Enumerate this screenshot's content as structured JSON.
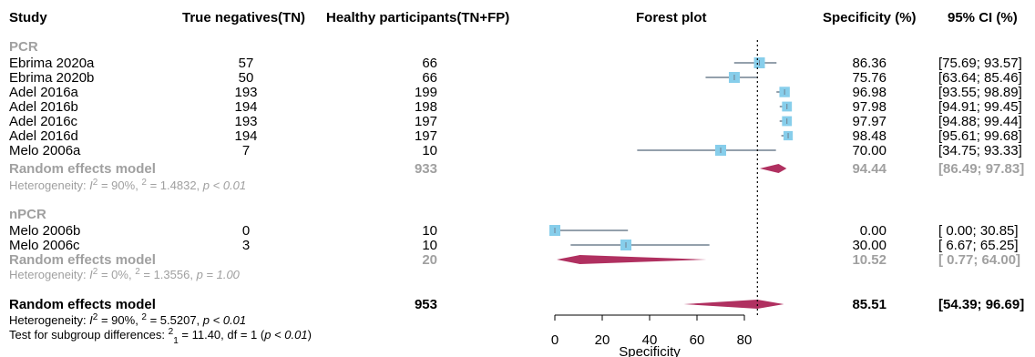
{
  "headers": {
    "study": "Study",
    "tn": "True negatives(TN)",
    "hp": "Healthy participants(TN+FP)",
    "forest": "Forest plot",
    "spec": "Specificity (%)",
    "ci": "95% CI (%)"
  },
  "chart_data": {
    "type": "forest",
    "xlabel": "Specificity",
    "xlim": [
      0,
      100
    ],
    "xticks": [
      "0",
      "20",
      "40",
      "60",
      "80"
    ],
    "reference_line": 85.51,
    "groups": [
      {
        "name": "PCR",
        "studies": [
          {
            "study": "Ebrima 2020a",
            "tn": "57",
            "hp": "66",
            "spec": "86.36",
            "ci": "[75.69; 93.57]",
            "est": 86.36,
            "lo": 75.69,
            "hi": 93.57,
            "weight": 1.0
          },
          {
            "study": "Ebrima 2020b",
            "tn": "50",
            "hp": "66",
            "spec": "75.76",
            "ci": "[63.64; 85.46]",
            "est": 75.76,
            "lo": 63.64,
            "hi": 85.46,
            "weight": 1.0
          },
          {
            "study": "Adel 2016a",
            "tn": "193",
            "hp": "199",
            "spec": "96.98",
            "ci": "[93.55; 98.89]",
            "est": 96.98,
            "lo": 93.55,
            "hi": 98.89,
            "weight": 0.95
          },
          {
            "study": "Adel 2016b",
            "tn": "194",
            "hp": "198",
            "spec": "97.98",
            "ci": "[94.91; 99.45]",
            "est": 97.98,
            "lo": 94.91,
            "hi": 99.45,
            "weight": 0.9
          },
          {
            "study": "Adel 2016c",
            "tn": "193",
            "hp": "197",
            "spec": "97.97",
            "ci": "[94.88; 99.44]",
            "est": 97.97,
            "lo": 94.88,
            "hi": 99.44,
            "weight": 0.9
          },
          {
            "study": "Adel 2016d",
            "tn": "194",
            "hp": "197",
            "spec": "98.48",
            "ci": "[95.61; 99.68]",
            "est": 98.48,
            "lo": 95.61,
            "hi": 99.68,
            "weight": 0.85
          },
          {
            "study": "Melo 2006a",
            "tn": "7",
            "hp": "10",
            "spec": "70.00",
            "ci": "[34.75; 93.33]",
            "est": 70.0,
            "lo": 34.75,
            "hi": 93.33,
            "weight": 1.0
          }
        ],
        "pooled": {
          "label": "Random effects model",
          "hp": "933",
          "spec": "94.44",
          "ci": "[86.49; 97.83]",
          "est": 94.44,
          "lo": 86.49,
          "hi": 97.83
        },
        "heterogeneity": {
          "i2": "90%",
          "tau2": "1.4832",
          "p": "p < 0.01"
        }
      },
      {
        "name": "nPCR",
        "studies": [
          {
            "study": "Melo 2006b",
            "tn": "0",
            "hp": "10",
            "spec": "0.00",
            "ci": "[ 0.00; 30.85]",
            "est": 0.0,
            "lo": 0.0,
            "hi": 30.85,
            "weight": 1.0
          },
          {
            "study": "Melo 2006c",
            "tn": "3",
            "hp": "10",
            "spec": "30.00",
            "ci": "[ 6.67; 65.25]",
            "est": 30.0,
            "lo": 6.67,
            "hi": 65.25,
            "weight": 1.0
          }
        ],
        "pooled": {
          "label": "Random effects model",
          "hp": "20",
          "spec": "10.52",
          "ci": "[ 0.77; 64.00]",
          "est": 10.52,
          "lo": 0.77,
          "hi": 64.0
        },
        "heterogeneity": {
          "i2": "0%",
          "tau2": "1.3556",
          "p": "p = 1.00"
        }
      }
    ],
    "overall": {
      "label": "Random effects model",
      "hp": "953",
      "spec": "85.51",
      "ci": "[54.39; 96.69]",
      "est": 85.51,
      "lo": 54.39,
      "hi": 96.69,
      "heterogeneity": {
        "i2": "90%",
        "tau2": "5.5207",
        "p": "p < 0.01"
      },
      "subgroup_test": {
        "chi2": "11.40",
        "df": "1",
        "p": "p < 0.01"
      }
    }
  },
  "colors": {
    "square": "#87ceeb",
    "diamond": "#b03060",
    "ci_line": "#708090",
    "grey_text": "#a0a0a0"
  }
}
